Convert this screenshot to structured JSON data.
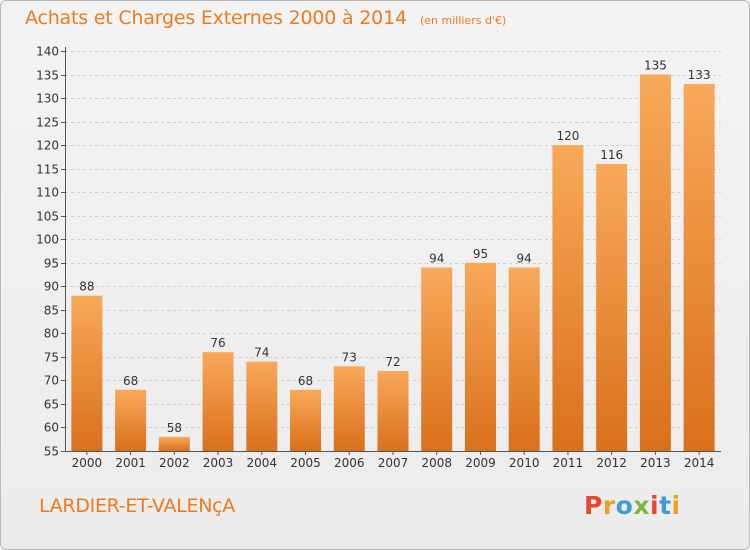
{
  "title": "Achats et Charges Externes 2000 à 2014",
  "subtitle": "(en milliers d'€)",
  "commune": "LARDIER-ET-VALENçA",
  "logo": {
    "text": "Proxiti",
    "letters": [
      {
        "ch": "P",
        "color": "#e8452c"
      },
      {
        "ch": "r",
        "color": "#f0a020"
      },
      {
        "ch": "o",
        "color": "#3c9ed8"
      },
      {
        "ch": "x",
        "color": "#7bb842"
      },
      {
        "ch": "i",
        "color": "#e8452c"
      },
      {
        "ch": "t",
        "color": "#3c9ed8"
      },
      {
        "ch": "i",
        "color": "#f0a020"
      }
    ]
  },
  "colors": {
    "accent": "#ee7a1c",
    "bar_light": "#f8a95a",
    "bar_dark": "#d9701c",
    "axis_text": "#333333"
  },
  "chart_data": {
    "type": "bar",
    "title": "Achats et Charges Externes 2000 à 2014",
    "subtitle": "(en milliers d'€)",
    "categories": [
      "2000",
      "2001",
      "2002",
      "2003",
      "2004",
      "2005",
      "2006",
      "2007",
      "2008",
      "2009",
      "2010",
      "2011",
      "2012",
      "2013",
      "2014"
    ],
    "values": [
      88,
      68,
      58,
      76,
      74,
      68,
      73,
      72,
      94,
      95,
      94,
      120,
      116,
      135,
      133
    ],
    "ylim": [
      55,
      140
    ],
    "yticks": [
      55,
      60,
      65,
      70,
      75,
      80,
      85,
      90,
      95,
      100,
      105,
      110,
      115,
      120,
      125,
      130,
      135,
      140
    ],
    "grid": true,
    "data_labels": true
  }
}
